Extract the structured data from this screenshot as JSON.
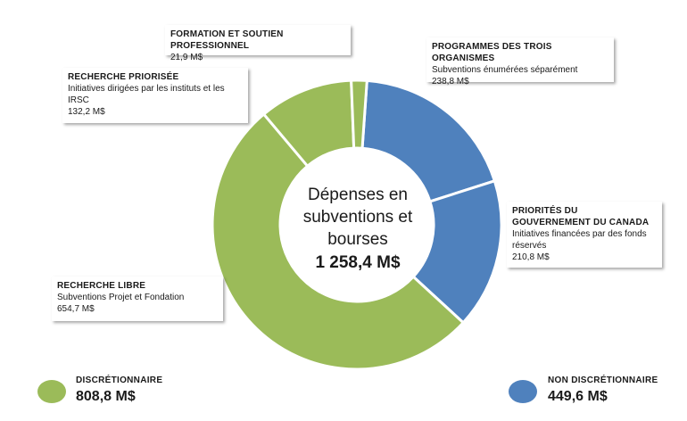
{
  "chart_data": {
    "type": "pie",
    "center": {
      "title": "Dépenses en subventions et bourses",
      "value": "1 258,4 M$"
    },
    "slices": [
      {
        "title": "PROGRAMMES  DES TROIS ORGANISMES",
        "desc": "Subventions énumérées  séparément",
        "label": "238,8 M$",
        "value": 238.8,
        "group": "nondisc",
        "color": "#4f81bd"
      },
      {
        "title": "PRIORITÉS  DU GOUVERNEMENT DU CANADA",
        "desc": "Initiatives financées par des fonds réservés",
        "label": "210,8 M$",
        "value": 210.8,
        "group": "nondisc",
        "color": "#4f81bd"
      },
      {
        "title": "RECHERCHE  LIBRE",
        "desc": "Subventions Projet et  Fondation",
        "label": "654,7 M$",
        "value": 654.7,
        "group": "disc",
        "color": "#9bbb59"
      },
      {
        "title": "RECHERCHE  PRIORISÉE",
        "desc": "Initiatives dirigées par les instituts et les IRSC",
        "label": "132,2 M$",
        "value": 132.2,
        "group": "disc",
        "color": "#9bbb59"
      },
      {
        "title": "FORMATION  ET SOUTIEN  PROFESSIONNEL",
        "desc": "",
        "label": "21,9 M$",
        "value": 21.9,
        "group": "disc",
        "color": "#9bbb59"
      }
    ],
    "legend": [
      {
        "label": "DISCRÉTIONNAIRE",
        "value": "808,8 M$",
        "color": "#9bbb59"
      },
      {
        "label": "NON DISCRÉTIONNAIRE",
        "value": "449,6 M$",
        "color": "#4f81bd"
      }
    ]
  }
}
